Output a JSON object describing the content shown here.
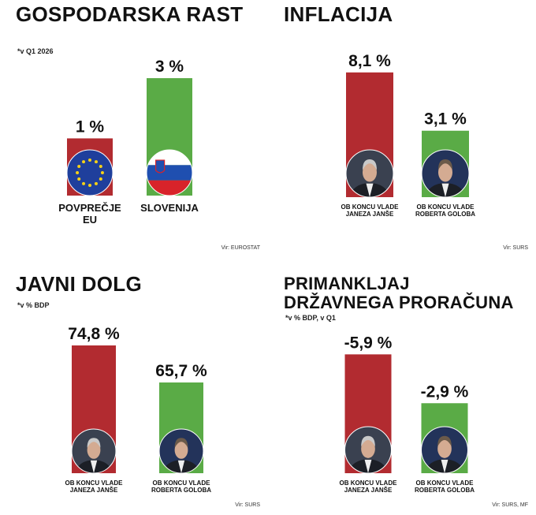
{
  "chart_data": [
    {
      "type": "bar",
      "title": "GOSPODARSKA RAST",
      "subtitle": "*v Q1 2026",
      "source": "Vir: EUROSTAT",
      "categories": [
        "POVPREČJE EU",
        "SLOVENIJA"
      ],
      "values": [
        1,
        3
      ],
      "value_labels": [
        "1 %",
        "3 %"
      ],
      "colors": [
        "#b22b30",
        "#5aab46"
      ],
      "ylim": [
        -0.9,
        3.5
      ]
    },
    {
      "type": "bar",
      "title": "INFLACIJA",
      "source": "Vir: SURS",
      "categories": [
        "OB KONCU VLADE JANEZA JANŠE",
        "OB KONCU VLADE ROBERTA GOLOBA"
      ],
      "values": [
        8.1,
        3.1
      ],
      "value_labels": [
        "8,1 %",
        "3,1 %"
      ],
      "colors": [
        "#b22b30",
        "#5aab46"
      ],
      "ylim": [
        -2.6,
        8.9
      ]
    },
    {
      "type": "bar",
      "title": "JAVNI DOLG",
      "subtitle": "*v % BDP",
      "source": "Vir: SURS",
      "categories": [
        "OB KONCU VLADE JANEZA JANŠE",
        "OB KONCU VLADE ROBERTA GOLOBA"
      ],
      "values": [
        74.8,
        65.7
      ],
      "value_labels": [
        "74,8 %",
        "65,7 %"
      ],
      "colors": [
        "#b22b30",
        "#5aab46"
      ],
      "ylim": [
        43.4,
        81
      ]
    },
    {
      "type": "bar",
      "title": "PRIMANKLJAJ DRŽAVNEGA PRORAČUNA",
      "subtitle": "*v % BDP, v Q1",
      "source": "Vir: SURS, MF",
      "categories": [
        "OB KONCU VLADE JANEZA JANŠE",
        "OB KONCU VLADE ROBERTA GOLOBA"
      ],
      "values": [
        -5.9,
        -2.9
      ],
      "value_labels": [
        "-5,9 %",
        "-2,9 %"
      ],
      "colors": [
        "#b22b30",
        "#5aab46"
      ],
      "ylim": [
        1.4,
        -8
      ]
    }
  ]
}
